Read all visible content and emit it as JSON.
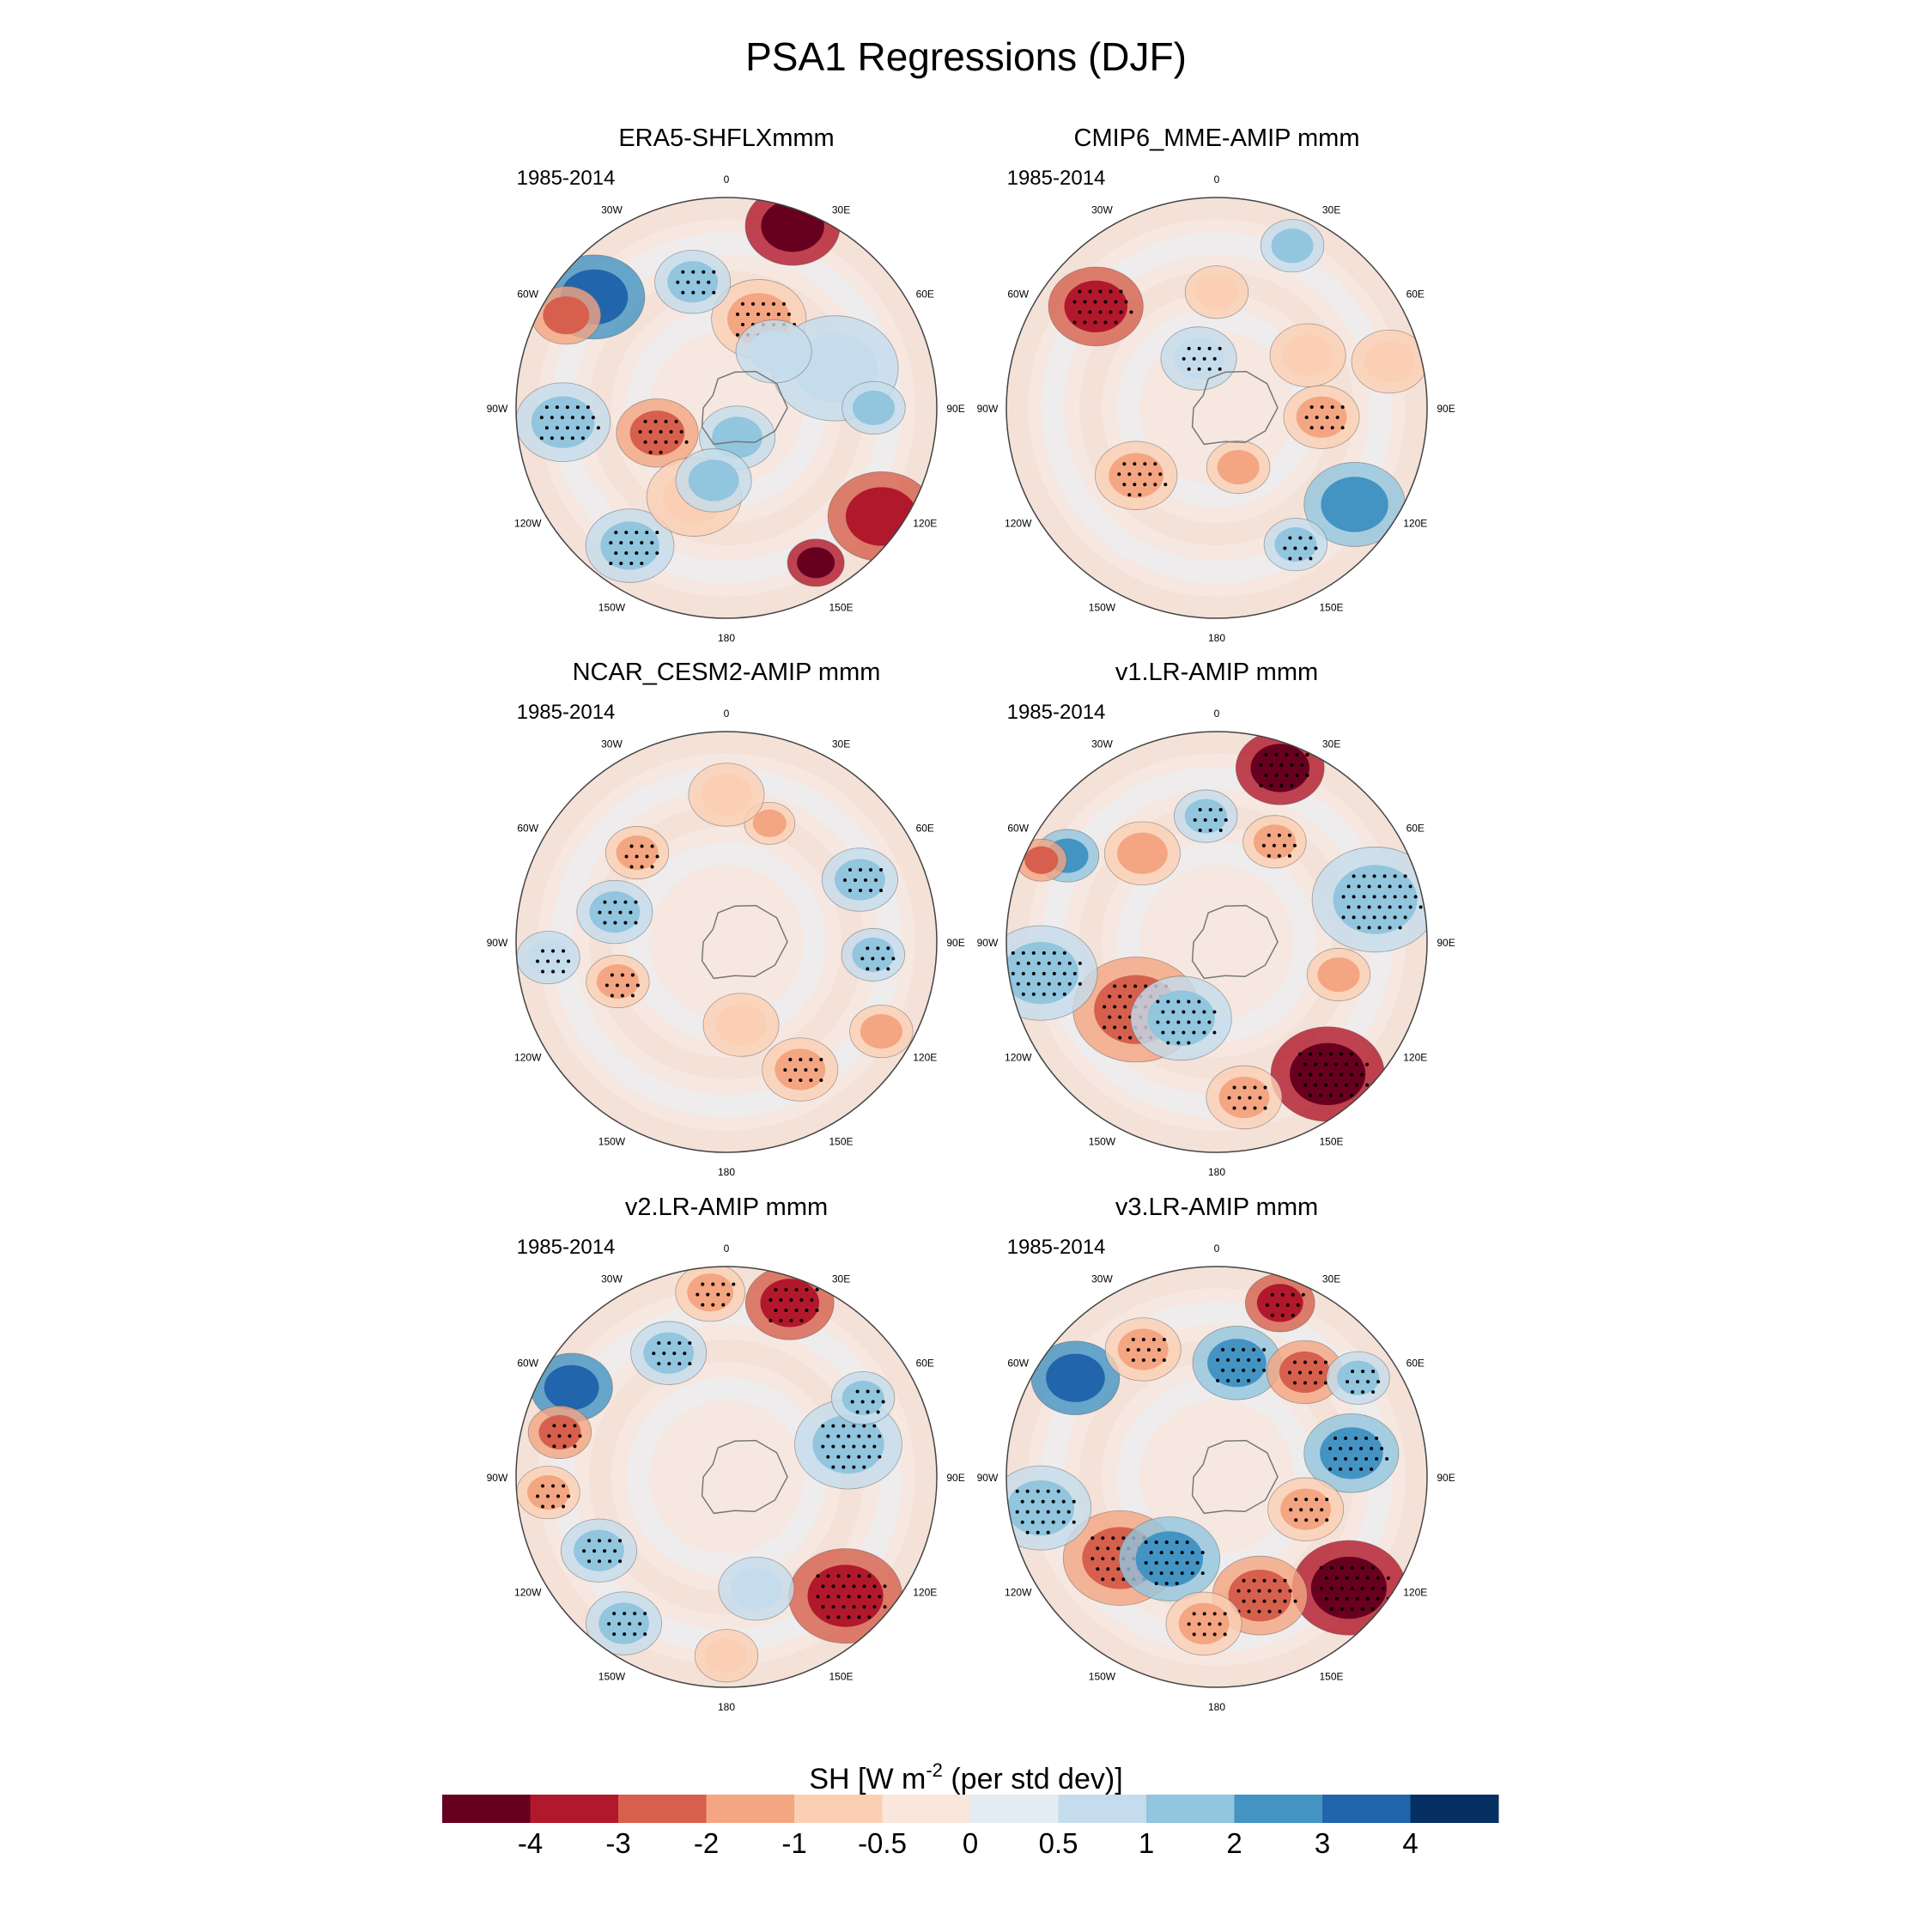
{
  "figure": {
    "title": "PSA1 Regressions (DJF)"
  },
  "chart_data": {
    "type": "heatmap",
    "projection": "south-polar-stereographic",
    "panels": [
      {
        "title": "ERA5-SHFLXmmm",
        "period": "1985-2014"
      },
      {
        "title": "CMIP6_MME-AMIP  mmm",
        "period": "1985-2014"
      },
      {
        "title": "NCAR_CESM2-AMIP  mmm",
        "period": "1985-2014"
      },
      {
        "title": "v1.LR-AMIP  mmm",
        "period": "1985-2014"
      },
      {
        "title": "v2.LR-AMIP  mmm",
        "period": "1985-2014"
      },
      {
        "title": "v3.LR-AMIP  mmm",
        "period": "1985-2014"
      }
    ],
    "longitude_labels": [
      "0",
      "30E",
      "60E",
      "90E",
      "120E",
      "150E",
      "180",
      "150W",
      "120W",
      "90W",
      "60W",
      "30W"
    ],
    "colorbar": {
      "label_main": "SH [W m",
      "label_sup": "-2",
      "label_tail": " (per std dev)]",
      "ticks": [
        "-4",
        "-3",
        "-2",
        "-1",
        "-0.5",
        "0",
        "0.5",
        "1",
        "2",
        "3",
        "4"
      ],
      "colors": [
        "#67001f",
        "#b2182b",
        "#d6604d",
        "#f4a582",
        "#fbcfb4",
        "#f9e6dd",
        "#e4ecf3",
        "#c4dcec",
        "#92c5de",
        "#4393c3",
        "#2166ac",
        "#053061"
      ]
    },
    "anomalies": [
      [
        {
          "lon": 20,
          "r": 0.92,
          "v": -4,
          "s": 0.15,
          "stip": false
        },
        {
          "lon": -50,
          "r": 0.82,
          "v": 3,
          "s": 0.16,
          "stip": false
        },
        {
          "lon": -60,
          "r": 0.88,
          "v": -2,
          "s": 0.11,
          "stip": false
        },
        {
          "lon": 125,
          "r": 0.9,
          "v": -3,
          "s": 0.17,
          "stip": false
        },
        {
          "lon": 150,
          "r": 0.85,
          "v": -4,
          "s": 0.09,
          "stip": false
        },
        {
          "lon": -110,
          "r": 0.35,
          "v": -2,
          "s": 0.13,
          "stip": true
        },
        {
          "lon": -95,
          "r": 0.78,
          "v": 1,
          "s": 0.15,
          "stip": true
        },
        {
          "lon": -145,
          "r": 0.8,
          "v": 1,
          "s": 0.14,
          "stip": true
        },
        {
          "lon": 20,
          "r": 0.45,
          "v": -1,
          "s": 0.15,
          "stip": true
        },
        {
          "lon": -15,
          "r": 0.62,
          "v": 1,
          "s": 0.12,
          "stip": true
        },
        {
          "lon": 160,
          "r": 0.15,
          "v": 1,
          "s": 0.12,
          "stip": false
        },
        {
          "lon": 70,
          "r": 0.55,
          "v": 0.5,
          "s": 0.2,
          "stip": false
        },
        {
          "lon": 90,
          "r": 0.7,
          "v": 1,
          "s": 0.1,
          "stip": false
        },
        {
          "lon": -160,
          "r": 0.45,
          "v": -0.5,
          "s": 0.15,
          "stip": false
        },
        {
          "lon": -170,
          "r": 0.35,
          "v": 1,
          "s": 0.12,
          "stip": false
        },
        {
          "lon": 40,
          "r": 0.35,
          "v": 0.5,
          "s": 0.12,
          "stip": false
        }
      ],
      [
        {
          "lon": -50,
          "r": 0.75,
          "v": -3,
          "s": 0.15,
          "stip": true
        },
        {
          "lon": 125,
          "r": 0.8,
          "v": 2,
          "s": 0.16,
          "stip": false
        },
        {
          "lon": 150,
          "r": 0.75,
          "v": 1,
          "s": 0.1,
          "stip": true
        },
        {
          "lon": 25,
          "r": 0.85,
          "v": 1,
          "s": 0.1,
          "stip": false
        },
        {
          "lon": 95,
          "r": 0.5,
          "v": -1,
          "s": 0.12,
          "stip": true
        },
        {
          "lon": -130,
          "r": 0.5,
          "v": -1,
          "s": 0.13,
          "stip": true
        },
        {
          "lon": 160,
          "r": 0.3,
          "v": -1,
          "s": 0.1,
          "stip": false
        },
        {
          "lon": -20,
          "r": 0.25,
          "v": 0.5,
          "s": 0.12,
          "stip": true
        },
        {
          "lon": 60,
          "r": 0.5,
          "v": -0.5,
          "s": 0.12,
          "stip": false
        },
        {
          "lon": 0,
          "r": 0.55,
          "v": -0.5,
          "s": 0.1,
          "stip": false
        },
        {
          "lon": 75,
          "r": 0.85,
          "v": -0.5,
          "s": 0.12,
          "stip": false
        }
      ],
      [
        {
          "lon": -75,
          "r": 0.55,
          "v": 1,
          "s": 0.12,
          "stip": true
        },
        {
          "lon": 65,
          "r": 0.7,
          "v": 1,
          "s": 0.12,
          "stip": true
        },
        {
          "lon": 150,
          "r": 0.7,
          "v": -1,
          "s": 0.12,
          "stip": true
        },
        {
          "lon": -110,
          "r": 0.55,
          "v": -1,
          "s": 0.1,
          "stip": true
        },
        {
          "lon": 120,
          "r": 0.85,
          "v": -1,
          "s": 0.1,
          "stip": false
        },
        {
          "lon": -45,
          "r": 0.6,
          "v": -1,
          "s": 0.1,
          "stip": true
        },
        {
          "lon": 20,
          "r": 0.6,
          "v": -1,
          "s": 0.08,
          "stip": false
        },
        {
          "lon": -95,
          "r": 0.85,
          "v": 0.5,
          "s": 0.1,
          "stip": true
        },
        {
          "lon": 170,
          "r": 0.4,
          "v": -0.5,
          "s": 0.12,
          "stip": false
        },
        {
          "lon": 0,
          "r": 0.7,
          "v": -0.5,
          "s": 0.12,
          "stip": false
        },
        {
          "lon": 95,
          "r": 0.7,
          "v": 1,
          "s": 0.1,
          "stip": true
        }
      ],
      [
        {
          "lon": 20,
          "r": 0.88,
          "v": -4,
          "s": 0.14,
          "stip": true
        },
        {
          "lon": 140,
          "r": 0.82,
          "v": -4,
          "s": 0.18,
          "stip": true
        },
        {
          "lon": -130,
          "r": 0.5,
          "v": -2,
          "s": 0.2,
          "stip": true
        },
        {
          "lon": -155,
          "r": 0.4,
          "v": 1,
          "s": 0.16,
          "stip": true
        },
        {
          "lon": 75,
          "r": 0.78,
          "v": 1,
          "s": 0.2,
          "stip": true
        },
        {
          "lon": -100,
          "r": 0.85,
          "v": 1,
          "s": 0.18,
          "stip": true
        },
        {
          "lon": -60,
          "r": 0.82,
          "v": 2,
          "s": 0.1,
          "stip": false
        },
        {
          "lon": -65,
          "r": 0.92,
          "v": -2,
          "s": 0.08,
          "stip": false
        },
        {
          "lon": -5,
          "r": 0.6,
          "v": 1,
          "s": 0.1,
          "stip": true
        },
        {
          "lon": 30,
          "r": 0.55,
          "v": -1,
          "s": 0.1,
          "stip": true
        },
        {
          "lon": 170,
          "r": 0.75,
          "v": -1,
          "s": 0.12,
          "stip": true
        },
        {
          "lon": -40,
          "r": 0.55,
          "v": -1,
          "s": 0.12,
          "stip": false
        },
        {
          "lon": 105,
          "r": 0.6,
          "v": -1,
          "s": 0.1,
          "stip": false
        }
      ],
      [
        {
          "lon": 20,
          "r": 0.88,
          "v": -3,
          "s": 0.14,
          "stip": true
        },
        {
          "lon": 135,
          "r": 0.8,
          "v": -3,
          "s": 0.18,
          "stip": true
        },
        {
          "lon": -60,
          "r": 0.85,
          "v": 3,
          "s": 0.13,
          "stip": false
        },
        {
          "lon": -75,
          "r": 0.82,
          "v": -2,
          "s": 0.1,
          "stip": true
        },
        {
          "lon": 75,
          "r": 0.6,
          "v": 1,
          "s": 0.17,
          "stip": true
        },
        {
          "lon": 60,
          "r": 0.75,
          "v": 1,
          "s": 0.1,
          "stip": true
        },
        {
          "lon": -5,
          "r": 0.88,
          "v": -1,
          "s": 0.11,
          "stip": true
        },
        {
          "lon": -95,
          "r": 0.85,
          "v": -1,
          "s": 0.1,
          "stip": true
        },
        {
          "lon": -120,
          "r": 0.7,
          "v": 1,
          "s": 0.12,
          "stip": true
        },
        {
          "lon": -145,
          "r": 0.85,
          "v": 1,
          "s": 0.12,
          "stip": true
        },
        {
          "lon": -25,
          "r": 0.65,
          "v": 1,
          "s": 0.12,
          "stip": true
        },
        {
          "lon": 165,
          "r": 0.55,
          "v": 0.5,
          "s": 0.12,
          "stip": false
        },
        {
          "lon": 180,
          "r": 0.85,
          "v": -0.5,
          "s": 0.1,
          "stip": false
        }
      ],
      [
        {
          "lon": 20,
          "r": 0.88,
          "v": -3,
          "s": 0.11,
          "stip": true
        },
        {
          "lon": 130,
          "r": 0.82,
          "v": -4,
          "s": 0.18,
          "stip": true
        },
        {
          "lon": -130,
          "r": 0.6,
          "v": -2,
          "s": 0.18,
          "stip": true
        },
        {
          "lon": -150,
          "r": 0.45,
          "v": 2,
          "s": 0.16,
          "stip": true
        },
        {
          "lon": 80,
          "r": 0.65,
          "v": 2,
          "s": 0.15,
          "stip": true
        },
        {
          "lon": -55,
          "r": 0.82,
          "v": 3,
          "s": 0.14,
          "stip": false
        },
        {
          "lon": 10,
          "r": 0.55,
          "v": 2,
          "s": 0.14,
          "stip": true
        },
        {
          "lon": -100,
          "r": 0.85,
          "v": 1,
          "s": 0.16,
          "stip": true
        },
        {
          "lon": 160,
          "r": 0.6,
          "v": -2,
          "s": 0.15,
          "stip": true
        },
        {
          "lon": 40,
          "r": 0.65,
          "v": -2,
          "s": 0.12,
          "stip": true
        },
        {
          "lon": -30,
          "r": 0.7,
          "v": -1,
          "s": 0.12,
          "stip": true
        },
        {
          "lon": 110,
          "r": 0.45,
          "v": -1,
          "s": 0.12,
          "stip": true
        },
        {
          "lon": -175,
          "r": 0.7,
          "v": -1,
          "s": 0.12,
          "stip": true
        },
        {
          "lon": 55,
          "r": 0.82,
          "v": 1,
          "s": 0.1,
          "stip": true
        }
      ]
    ]
  }
}
